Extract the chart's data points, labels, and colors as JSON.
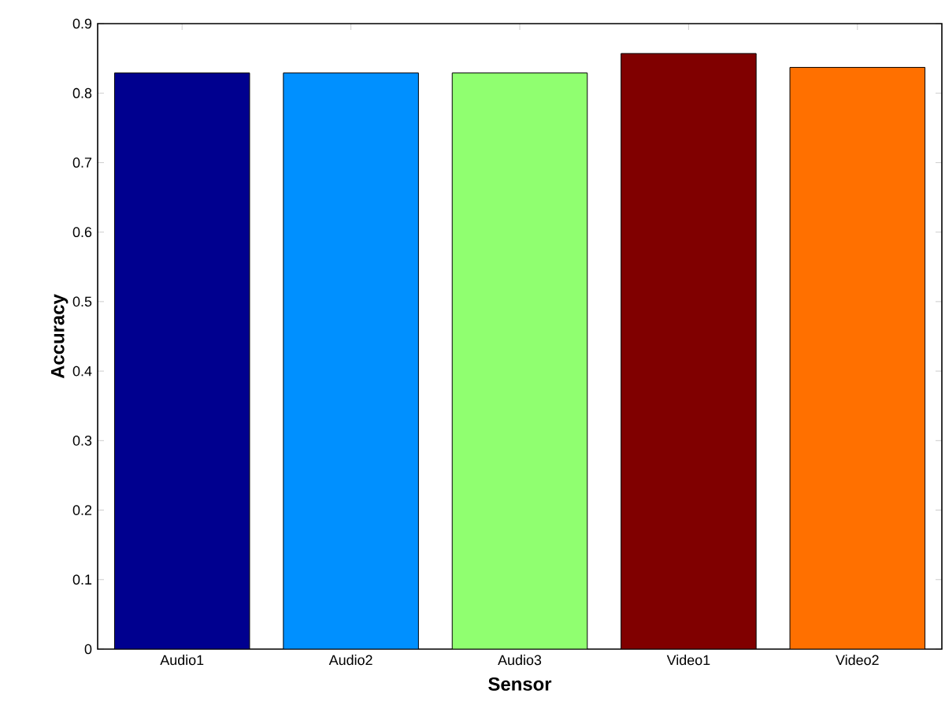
{
  "chart_data": {
    "type": "bar",
    "xlabel": "Sensor",
    "ylabel": "Accuracy",
    "categories": [
      "Audio1",
      "Audio2",
      "Audio3",
      "Video1",
      "Video2"
    ],
    "values": [
      0.829,
      0.829,
      0.829,
      0.857,
      0.837
    ],
    "colors": [
      "#00008f",
      "#0090ff",
      "#90ff70",
      "#800000",
      "#ff7000"
    ],
    "ylim": [
      0,
      0.9
    ],
    "yticks": [
      0,
      0.1,
      0.2,
      0.3,
      0.4,
      0.5,
      0.6,
      0.7,
      0.8,
      0.9
    ]
  }
}
